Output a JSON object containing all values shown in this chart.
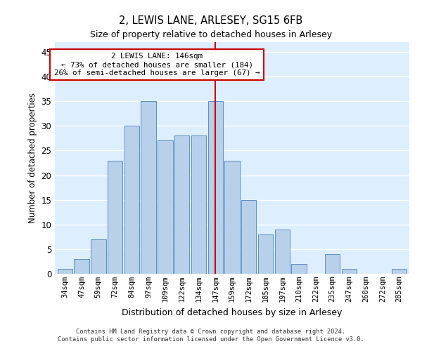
{
  "title": "2, LEWIS LANE, ARLESEY, SG15 6FB",
  "subtitle": "Size of property relative to detached houses in Arlesey",
  "xlabel": "Distribution of detached houses by size in Arlesey",
  "ylabel": "Number of detached properties",
  "categories": [
    "34sqm",
    "47sqm",
    "59sqm",
    "72sqm",
    "84sqm",
    "97sqm",
    "109sqm",
    "122sqm",
    "134sqm",
    "147sqm",
    "159sqm",
    "172sqm",
    "185sqm",
    "197sqm",
    "210sqm",
    "222sqm",
    "235sqm",
    "247sqm",
    "260sqm",
    "272sqm",
    "285sqm"
  ],
  "values": [
    1,
    3,
    7,
    23,
    30,
    35,
    27,
    28,
    28,
    35,
    23,
    15,
    8,
    9,
    2,
    0,
    4,
    1,
    0,
    0,
    1
  ],
  "bar_color": "#b8d0ea",
  "bar_edge_color": "#5b8ec4",
  "reference_line_x": 9,
  "annotation_title": "2 LEWIS LANE: 146sqm",
  "annotation_line1": "← 73% of detached houses are smaller (184)",
  "annotation_line2": "26% of semi-detached houses are larger (67) →",
  "annotation_box_color": "#ffffff",
  "annotation_box_edge_color": "#cc0000",
  "ylim": [
    0,
    47
  ],
  "yticks": [
    0,
    5,
    10,
    15,
    20,
    25,
    30,
    35,
    40,
    45
  ],
  "background_color": "#ddeeff",
  "footer_line1": "Contains HM Land Registry data © Crown copyright and database right 2024.",
  "footer_line2": "Contains public sector information licensed under the Open Government Licence v3.0."
}
